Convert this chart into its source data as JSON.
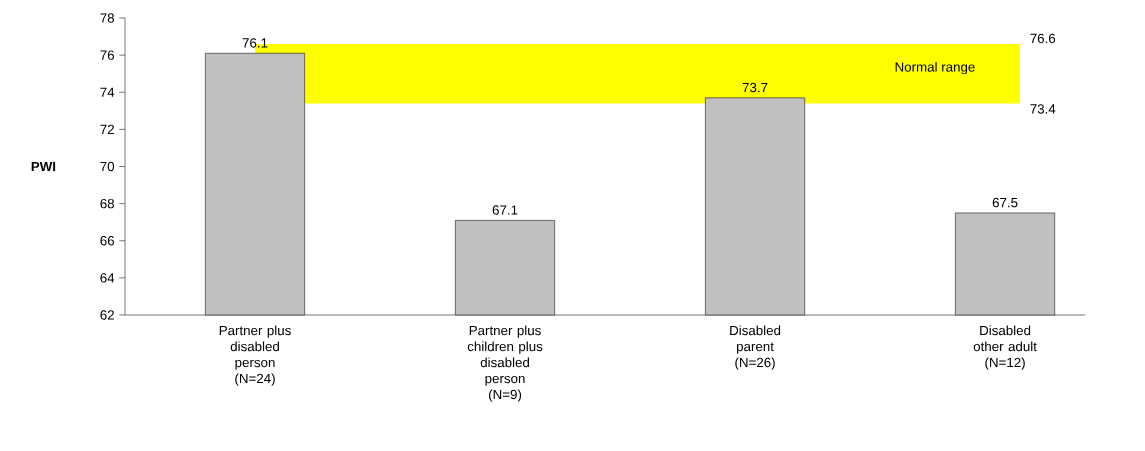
{
  "chart_data": {
    "type": "bar",
    "ylabel": "PWI",
    "categories": [
      "Partner plus disabled person (N=24)",
      "Partner plus children plus disabled person (N=9)",
      "Disabled parent (N=26)",
      "Disabled other adult (N=12)"
    ],
    "values": [
      76.1,
      67.1,
      73.7,
      67.5
    ],
    "color": "#c0c0c0",
    "ylim": [
      62,
      78
    ],
    "yticks": [
      62,
      64,
      66,
      68,
      70,
      72,
      74,
      76,
      78
    ],
    "data_labels": true,
    "bands": [
      {
        "axis": "y",
        "from": 73.4,
        "to": 76.6,
        "label": "Normal range",
        "color": "#ffff00"
      }
    ],
    "annotations": [
      "76.6",
      "73.4"
    ]
  }
}
